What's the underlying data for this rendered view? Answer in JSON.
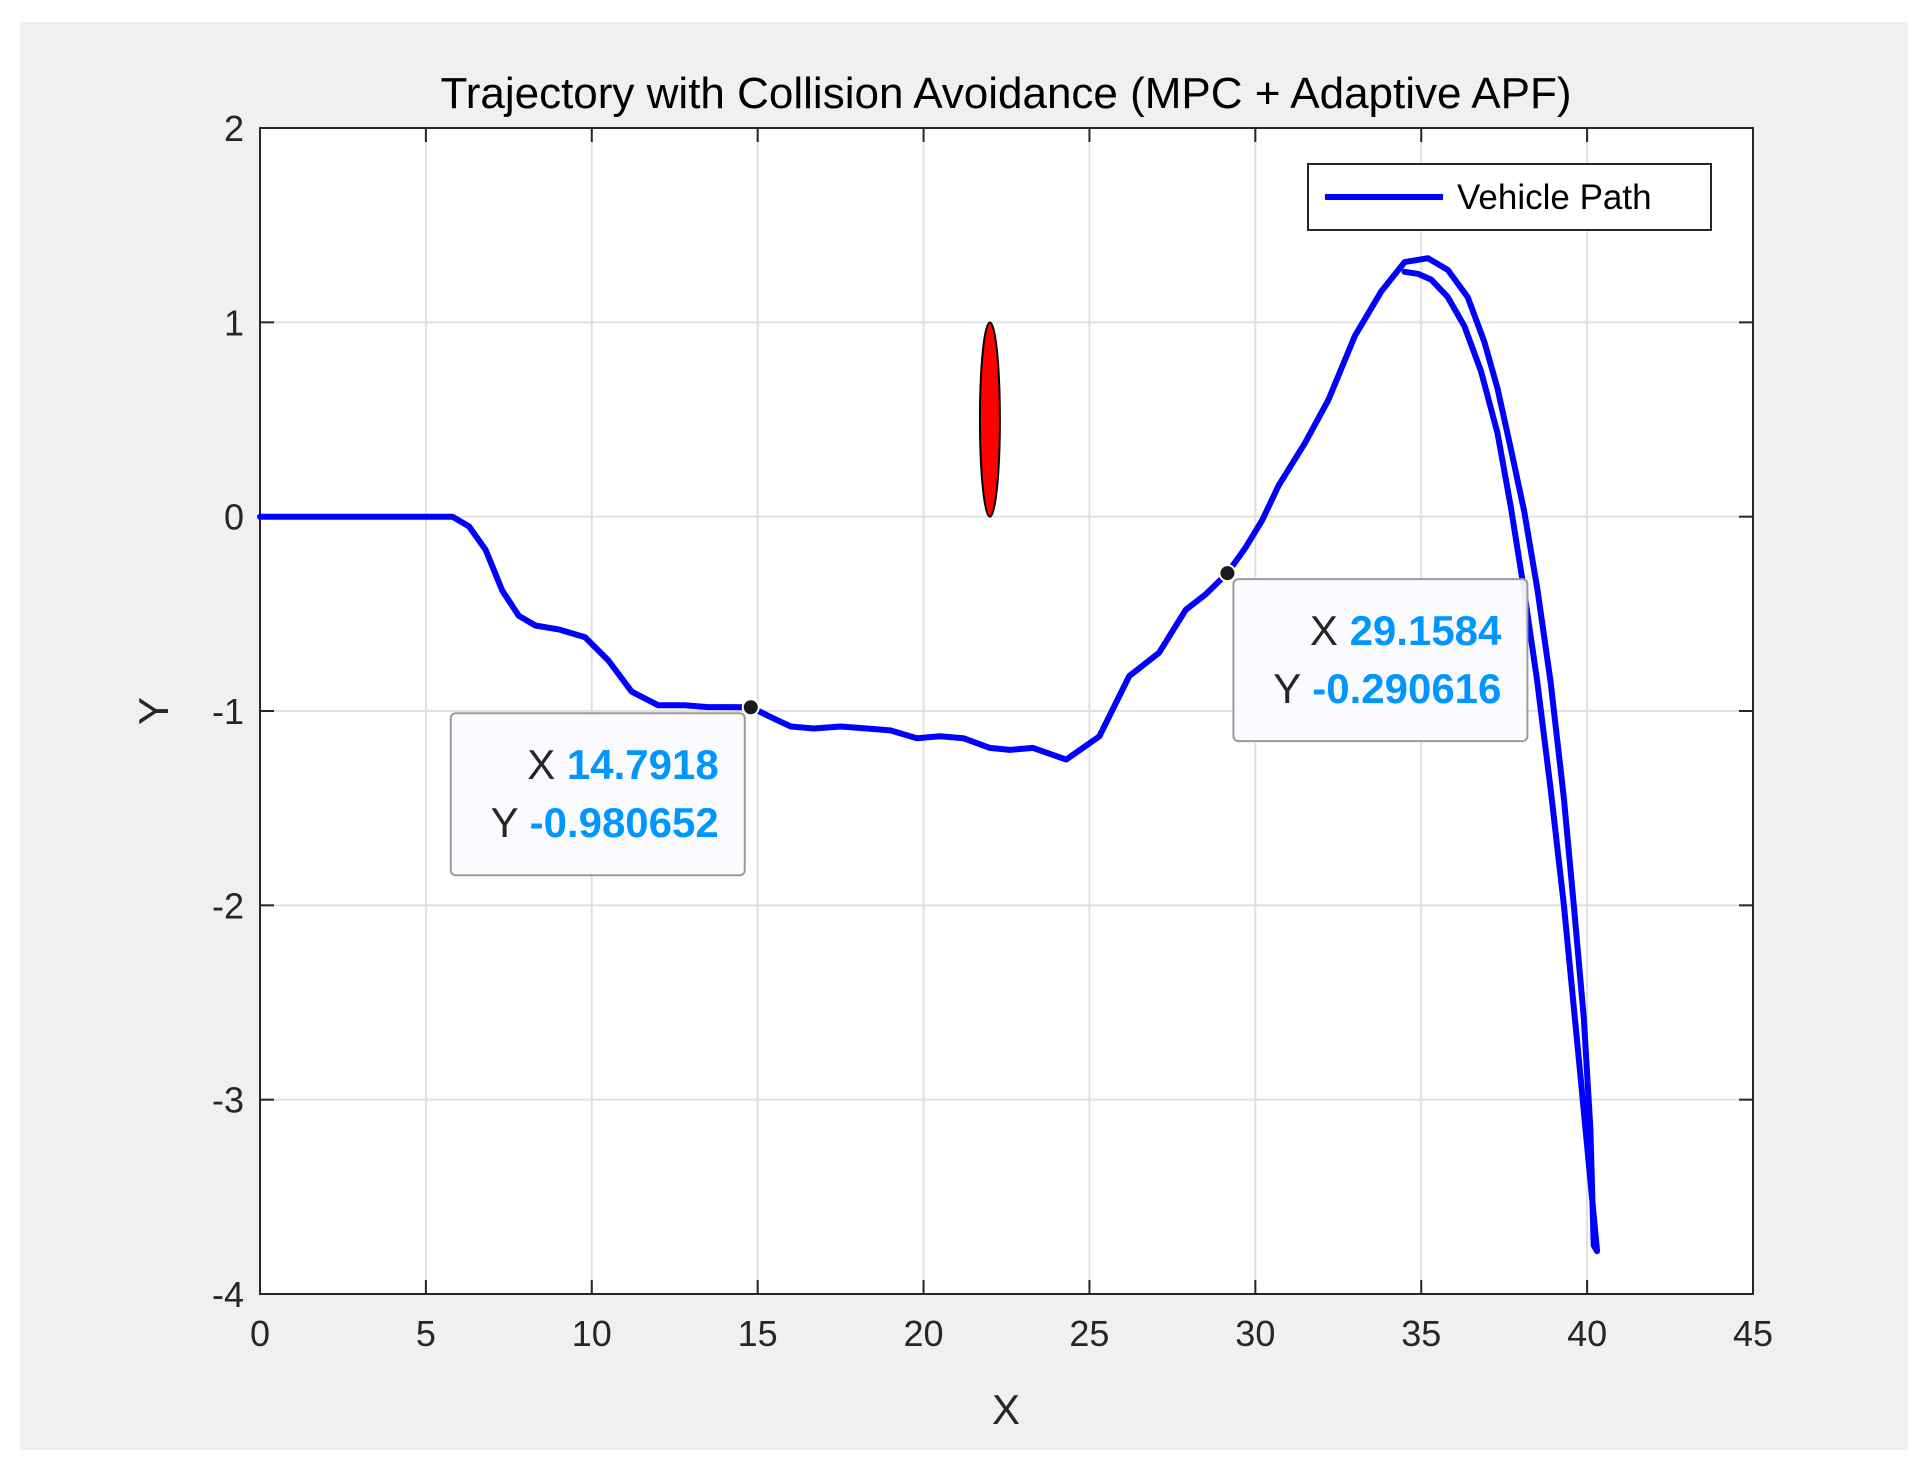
{
  "chart_data": {
    "type": "line",
    "title": "Trajectory with Collision Avoidance (MPC + Adaptive APF)",
    "xlabel": "X",
    "ylabel": "Y",
    "xlim": [
      0,
      45
    ],
    "ylim": [
      -4,
      2
    ],
    "xticks": [
      0,
      5,
      10,
      15,
      20,
      25,
      30,
      35,
      40,
      45
    ],
    "yticks": [
      -4,
      -3,
      -2,
      -1,
      0,
      1,
      2
    ],
    "grid": true,
    "legend": {
      "position": "top-right",
      "entries": [
        "Vehicle Path"
      ]
    },
    "colors": {
      "path": "#0000ff",
      "obstacle": "#ff0000",
      "datatip_value": "#0096ff",
      "figure_bg": "#f0f0f0",
      "grid": "#e0e0e0"
    },
    "series": [
      {
        "name": "Vehicle Path",
        "x": [
          0,
          1,
          2,
          3,
          4,
          5,
          5.8,
          6.3,
          6.8,
          7.3,
          7.8,
          8.3,
          9.0,
          9.8,
          10.5,
          11.2,
          12.0,
          12.8,
          13.5,
          14.2,
          14.7918,
          15.5,
          16.0,
          16.7,
          17.5,
          18.3,
          19.0,
          19.8,
          20.5,
          21.2,
          22.0,
          22.6,
          23.3,
          24.3,
          25.3,
          26.2,
          27.1,
          27.9,
          28.5,
          29.1584,
          29.7,
          30.2,
          30.7,
          31.5,
          32.2,
          33.0,
          33.8,
          34.5,
          35.2,
          35.8,
          36.4,
          36.9,
          37.3,
          37.7,
          38.1,
          38.5,
          38.9,
          39.3,
          39.6,
          39.9,
          40.1,
          40.2,
          40.3,
          39.8,
          39.3,
          38.9,
          38.5,
          38.1,
          37.7,
          37.3,
          36.8,
          36.3,
          35.8,
          35.3,
          34.9,
          34.5
        ],
        "y": [
          0,
          0,
          0,
          0,
          0,
          0,
          0,
          -0.05,
          -0.17,
          -0.38,
          -0.51,
          -0.56,
          -0.58,
          -0.62,
          -0.74,
          -0.9,
          -0.97,
          -0.97,
          -0.98,
          -0.98,
          -0.980652,
          -1.04,
          -1.08,
          -1.09,
          -1.08,
          -1.09,
          -1.1,
          -1.14,
          -1.13,
          -1.14,
          -1.19,
          -1.2,
          -1.19,
          -1.25,
          -1.13,
          -0.82,
          -0.7,
          -0.48,
          -0.4,
          -0.290616,
          -0.16,
          -0.02,
          0.16,
          0.38,
          0.6,
          0.93,
          1.16,
          1.31,
          1.33,
          1.27,
          1.13,
          0.9,
          0.66,
          0.35,
          0.03,
          -0.37,
          -0.85,
          -1.45,
          -2.0,
          -2.58,
          -3.15,
          -3.75,
          -3.78,
          -2.88,
          -2.0,
          -1.4,
          -0.85,
          -0.38,
          0.05,
          0.43,
          0.75,
          0.98,
          1.13,
          1.22,
          1.25,
          1.26
        ]
      }
    ],
    "obstacle": {
      "shape": "ellipse",
      "cx": 22,
      "cy": 0.5,
      "rx": 0.3,
      "ry": 0.5
    },
    "datatips": [
      {
        "x": 14.7918,
        "y": -0.980652,
        "x_label": "X",
        "y_label": "Y",
        "x_text": "14.7918",
        "y_text": "-0.980652"
      },
      {
        "x": 29.1584,
        "y": -0.290616,
        "x_label": "X",
        "y_label": "Y",
        "x_text": "29.1584",
        "y_text": "-0.290616"
      }
    ]
  }
}
